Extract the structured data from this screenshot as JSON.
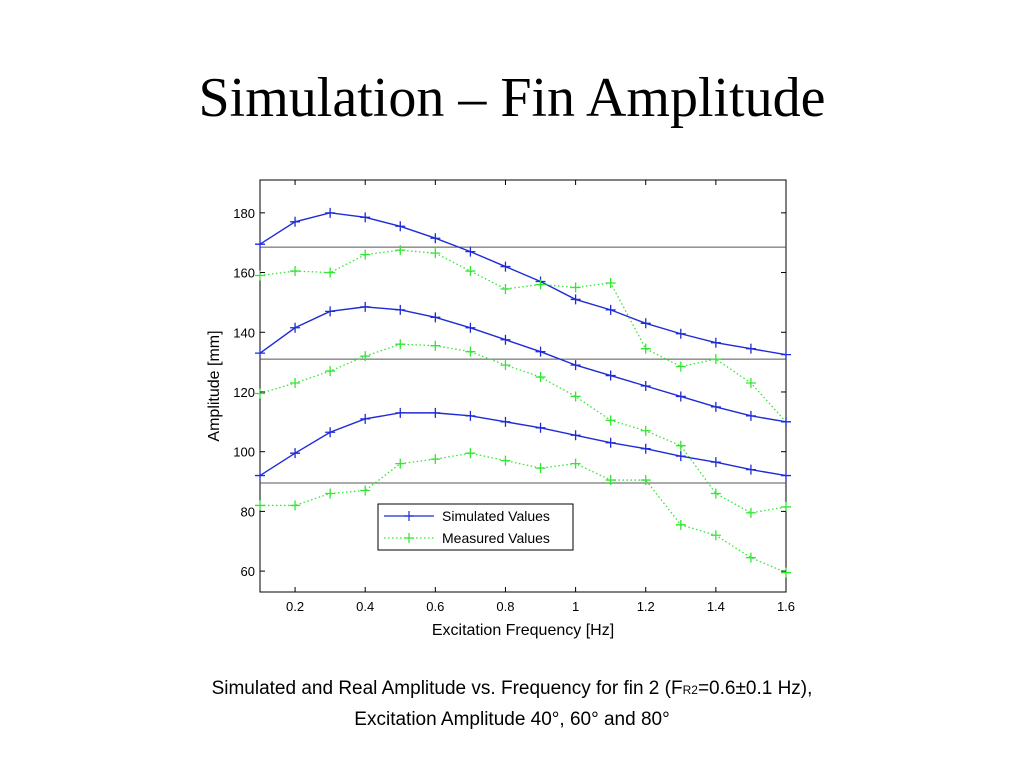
{
  "slide": {
    "title": "Simulation – Fin Amplitude",
    "caption_part1": "Simulated and Real Amplitude vs. Frequency for fin 2 (F",
    "caption_sub": "R2",
    "caption_part2": "=0.6±0.1 Hz),",
    "caption_line2": "Excitation Amplitude 40°, 60° and 80°"
  },
  "colors": {
    "simulated": "#1f2bd6",
    "measured": "#33e633",
    "reference": "#555555"
  },
  "chart_data": {
    "type": "line",
    "xlabel": "Excitation Frequency [Hz]",
    "ylabel": "Amplitude [mm]",
    "xlim": [
      0.1,
      1.6
    ],
    "ylim": [
      53,
      191
    ],
    "xticks": [
      0.2,
      0.4,
      0.6,
      0.8,
      1,
      1.2,
      1.4,
      1.6
    ],
    "yticks": [
      60,
      80,
      100,
      120,
      140,
      160,
      180
    ],
    "grid": false,
    "legend": {
      "placement": "lower-center",
      "entries": [
        "Simulated Values",
        "Measured Values"
      ]
    },
    "x": [
      0.1,
      0.2,
      0.3,
      0.4,
      0.5,
      0.6,
      0.7,
      0.8,
      0.9,
      1.0,
      1.1,
      1.2,
      1.3,
      1.4,
      1.5,
      1.6
    ],
    "reference_lines": [
      168.5,
      131,
      89.5
    ],
    "series": [
      {
        "group": "80°",
        "kind": "simulated",
        "name": "Simulated Values",
        "values": [
          169.5,
          177,
          180,
          178.5,
          175.5,
          171.5,
          167,
          162,
          157,
          151,
          147.5,
          143,
          139.5,
          136.5,
          134.5,
          132.5
        ]
      },
      {
        "group": "80°",
        "kind": "measured",
        "name": "Measured Values",
        "values": [
          159,
          160.5,
          160,
          166,
          167.5,
          166.5,
          160.5,
          154.5,
          156,
          155,
          156.5,
          134.5,
          128.5,
          131,
          123,
          110
        ]
      },
      {
        "group": "60°",
        "kind": "simulated",
        "values": [
          133,
          141.5,
          147,
          148.5,
          147.5,
          145,
          141.5,
          137.5,
          133.5,
          129,
          125.5,
          122,
          118.5,
          115,
          112,
          110
        ]
      },
      {
        "group": "60°",
        "kind": "measured",
        "values": [
          119.5,
          123,
          127,
          132,
          136,
          135.5,
          133.5,
          129,
          125,
          118.5,
          110.5,
          107,
          102,
          86,
          79.5,
          81.5
        ]
      },
      {
        "group": "40°",
        "kind": "simulated",
        "values": [
          92,
          99.5,
          106.5,
          111,
          113,
          113,
          112,
          110,
          108,
          105.5,
          103,
          101,
          98.5,
          96.5,
          94,
          92
        ]
      },
      {
        "group": "40°",
        "kind": "measured",
        "values": [
          82,
          82,
          86,
          87,
          96,
          97.5,
          99.5,
          97,
          94.5,
          96,
          90.5,
          90.5,
          75.5,
          72,
          64.5,
          59.5
        ]
      }
    ]
  }
}
